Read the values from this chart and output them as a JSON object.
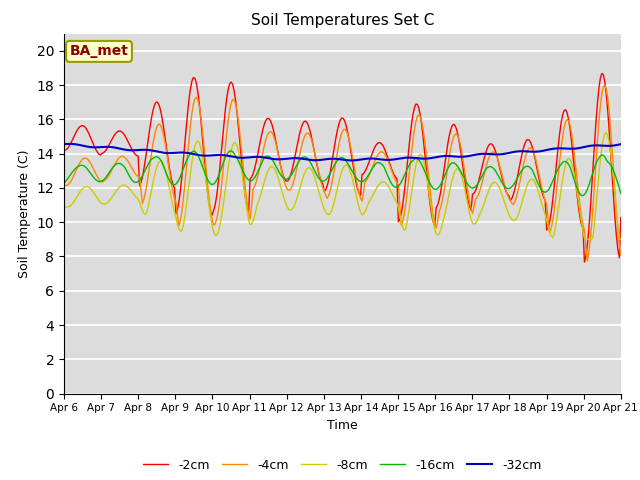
{
  "title": "Soil Temperatures Set C",
  "xlabel": "Time",
  "ylabel": "Soil Temperature (C)",
  "ylim": [
    0,
    21
  ],
  "yticks": [
    0,
    2,
    4,
    6,
    8,
    10,
    12,
    14,
    16,
    18,
    20
  ],
  "bg_color": "#dcdcdc",
  "annotation_text": "BA_met",
  "annotation_color": "#8b0000",
  "annotation_bg": "#ffffcc",
  "legend_entries": [
    "-2cm",
    "-4cm",
    "-8cm",
    "-16cm",
    "-32cm"
  ],
  "line_colors": [
    "#ff0000",
    "#ff8800",
    "#cccc00",
    "#00bb00",
    "#0000cc"
  ],
  "line_widths": [
    1.0,
    1.0,
    1.0,
    1.0,
    1.5
  ]
}
